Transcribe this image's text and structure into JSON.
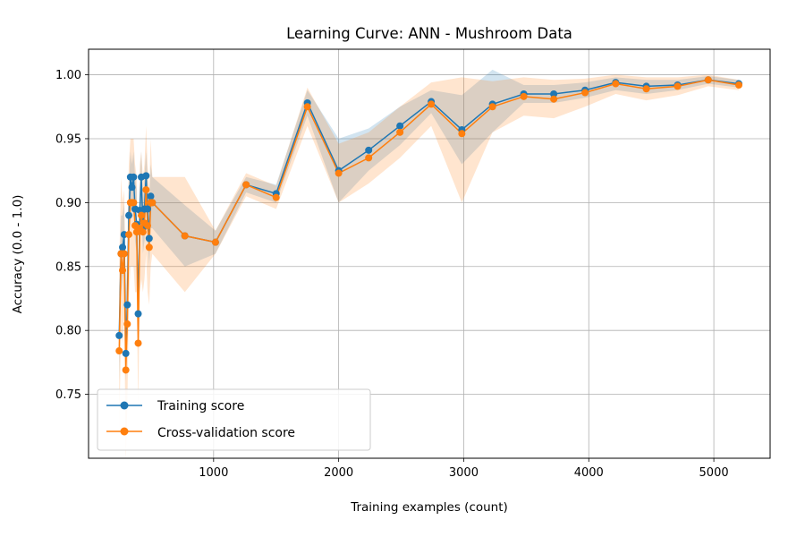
{
  "chart_data": {
    "type": "line",
    "title": "Learning Curve: ANN - Mushroom Data",
    "xlabel": "Training examples (count)",
    "ylabel": "Accuracy (0.0 - 1.0)",
    "xlim": [
      0,
      5450
    ],
    "ylim": [
      0.7,
      1.02
    ],
    "xticks": [
      1000,
      2000,
      3000,
      4000,
      5000
    ],
    "yticks": [
      0.75,
      0.8,
      0.85,
      0.9,
      0.95,
      1.0
    ],
    "xtick_labels": [
      "1000",
      "2000",
      "3000",
      "4000",
      "5000"
    ],
    "ytick_labels": [
      "0.75",
      "0.80",
      "0.85",
      "0.90",
      "0.95",
      "1.00"
    ],
    "grid": true,
    "legend_position": "lower-left",
    "series": [
      {
        "name": "Training score",
        "color": "#1f77b4",
        "x": [
          245,
          260,
          272,
          285,
          298,
          310,
          322,
          335,
          347,
          360,
          372,
          385,
          397,
          410,
          422,
          435,
          447,
          460,
          472,
          485,
          497,
          510,
          770,
          1015,
          1260,
          1500,
          1750,
          2000,
          2240,
          2490,
          2740,
          2985,
          3230,
          3480,
          3720,
          3970,
          4215,
          4460,
          4710,
          4955,
          5200
        ],
        "y": [
          0.796,
          0.86,
          0.865,
          0.875,
          0.782,
          0.82,
          0.89,
          0.92,
          0.912,
          0.92,
          0.895,
          0.883,
          0.813,
          0.894,
          0.92,
          0.88,
          0.895,
          0.921,
          0.895,
          0.872,
          0.905,
          0.9,
          0.874,
          0.869,
          0.914,
          0.907,
          0.978,
          0.925,
          0.941,
          0.96,
          0.979,
          0.957,
          0.977,
          0.985,
          0.985,
          0.988,
          0.994,
          0.991,
          0.992,
          0.996,
          0.993
        ],
        "band_low": [
          0.76,
          0.83,
          0.84,
          0.85,
          0.76,
          0.8,
          0.87,
          0.9,
          0.89,
          0.9,
          0.87,
          0.86,
          0.79,
          0.87,
          0.9,
          0.86,
          0.87,
          0.9,
          0.87,
          0.85,
          0.88,
          0.88,
          0.85,
          0.86,
          0.908,
          0.9,
          0.968,
          0.9,
          0.925,
          0.945,
          0.97,
          0.93,
          0.955,
          0.978,
          0.978,
          0.982,
          0.988,
          0.985,
          0.988,
          0.993,
          0.99
        ],
        "band_high": [
          0.83,
          0.89,
          0.89,
          0.9,
          0.81,
          0.85,
          0.91,
          0.94,
          0.93,
          0.94,
          0.92,
          0.91,
          0.84,
          0.92,
          0.94,
          0.9,
          0.92,
          0.94,
          0.92,
          0.9,
          0.93,
          0.92,
          0.898,
          0.878,
          0.92,
          0.914,
          0.988,
          0.95,
          0.958,
          0.975,
          0.988,
          0.984,
          1.004,
          0.992,
          0.992,
          0.994,
          0.998,
          0.996,
          0.996,
          0.999,
          0.996
        ]
      },
      {
        "name": "Cross-validation score",
        "color": "#ff7f0e",
        "x": [
          245,
          260,
          272,
          285,
          298,
          310,
          322,
          335,
          347,
          360,
          372,
          385,
          397,
          410,
          422,
          435,
          447,
          460,
          472,
          485,
          497,
          510,
          770,
          1015,
          1260,
          1500,
          1750,
          2000,
          2240,
          2490,
          2740,
          2985,
          3230,
          3480,
          3720,
          3970,
          4215,
          4460,
          4710,
          4955,
          5200
        ],
        "y": [
          0.784,
          0.86,
          0.847,
          0.86,
          0.769,
          0.805,
          0.875,
          0.9,
          0.9,
          0.9,
          0.882,
          0.877,
          0.79,
          0.88,
          0.89,
          0.877,
          0.884,
          0.91,
          0.882,
          0.865,
          0.9,
          0.9,
          0.874,
          0.869,
          0.914,
          0.904,
          0.975,
          0.923,
          0.935,
          0.955,
          0.977,
          0.954,
          0.975,
          0.983,
          0.981,
          0.986,
          0.993,
          0.989,
          0.991,
          0.996,
          0.992
        ],
        "band_low": [
          0.72,
          0.8,
          0.79,
          0.81,
          0.7,
          0.74,
          0.82,
          0.85,
          0.85,
          0.85,
          0.83,
          0.83,
          0.74,
          0.83,
          0.84,
          0.83,
          0.84,
          0.86,
          0.83,
          0.82,
          0.85,
          0.86,
          0.83,
          0.86,
          0.905,
          0.895,
          0.96,
          0.9,
          0.915,
          0.935,
          0.96,
          0.9,
          0.955,
          0.968,
          0.966,
          0.975,
          0.985,
          0.98,
          0.984,
          0.991,
          0.988
        ],
        "band_high": [
          0.85,
          0.92,
          0.9,
          0.91,
          0.83,
          0.87,
          0.93,
          0.95,
          0.95,
          0.95,
          0.93,
          0.92,
          0.84,
          0.93,
          0.94,
          0.92,
          0.93,
          0.96,
          0.93,
          0.91,
          0.95,
          0.92,
          0.92,
          0.878,
          0.923,
          0.913,
          0.99,
          0.946,
          0.955,
          0.975,
          0.994,
          0.998,
          0.995,
          0.998,
          0.996,
          0.997,
          1.0,
          0.998,
          0.998,
          1.0,
          0.996
        ]
      }
    ]
  }
}
